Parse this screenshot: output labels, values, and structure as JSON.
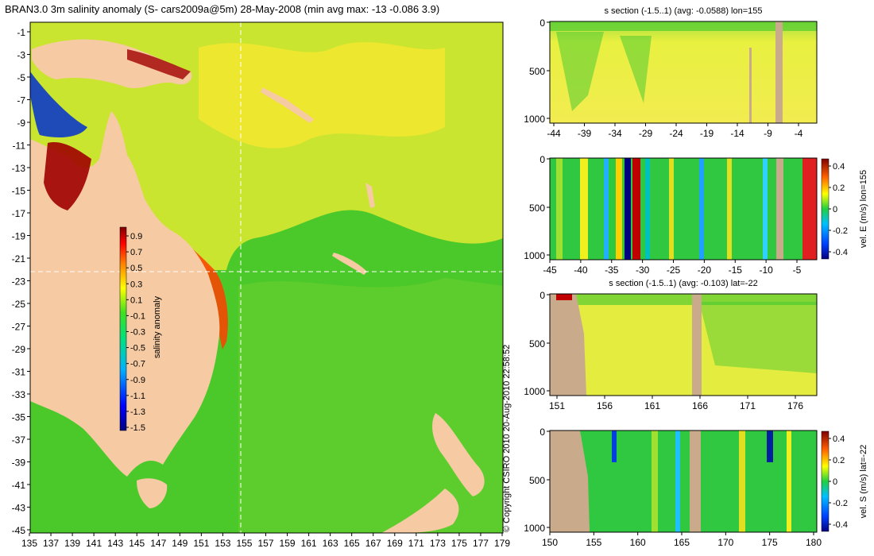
{
  "title": "BRAN3.0 3m salinity anomaly (S- cars2009a@5m) 28-May-2008 (min avg max: -13 -0.086 3.9)",
  "copyright": "© Copyright CSIRO 2010   20-Aug-2010 22:58:52",
  "colors": {
    "land": "#f6caa2",
    "section_land": "#c9ab8c",
    "background_ocean": "#4cc92a",
    "crosshair": "#ffffff"
  },
  "map": {
    "lon_ticks": [
      "135",
      "137",
      "139",
      "141",
      "143",
      "145",
      "147",
      "149",
      "151",
      "153",
      "155",
      "157",
      "159",
      "161",
      "163",
      "165",
      "167",
      "169",
      "171",
      "173",
      "175",
      "177",
      "179"
    ],
    "lat_ticks": [
      "-1",
      "-3",
      "-5",
      "-7",
      "-9",
      "-11",
      "-13",
      "-15",
      "-17",
      "-19",
      "-21",
      "-23",
      "-25",
      "-27",
      "-29",
      "-31",
      "-33",
      "-35",
      "-37",
      "-39",
      "-41",
      "-43",
      "-45"
    ],
    "crosshair_lon": 155,
    "crosshair_lat": -22,
    "colorbar": {
      "label": "salinity anomaly",
      "ticks": [
        "0.9",
        "0.7",
        "0.5",
        "0.3",
        "0.1",
        "-0.1",
        "-0.3",
        "-0.5",
        "-0.7",
        "-0.9",
        "-1.1",
        "-1.3",
        "-1.5"
      ],
      "range": [
        -1.5,
        0.9
      ]
    }
  },
  "sections": [
    {
      "title": "s section (-1.5..1) (avg: -0.0588) lon=155",
      "x_ticks": [
        "-44",
        "-39",
        "-34",
        "-29",
        "-24",
        "-19",
        "-14",
        "-9",
        "-4"
      ],
      "y_ticks": [
        "0",
        "500",
        "1000"
      ],
      "colorbar": null
    },
    {
      "title": "",
      "x_ticks": [
        "-45",
        "-40",
        "-35",
        "-30",
        "-25",
        "-20",
        "-15",
        "-10",
        "-5"
      ],
      "y_ticks": [
        "0",
        "500",
        "1000"
      ],
      "colorbar": {
        "label": "vel. E (m/s) lon=155",
        "ticks": [
          "0.4",
          "0.2",
          "0",
          "-0.2",
          "-0.4"
        ]
      }
    },
    {
      "title": "s section (-1.5..1) (avg: -0.103) lat=-22",
      "x_ticks": [
        "151",
        "156",
        "161",
        "166",
        "171",
        "176"
      ],
      "y_ticks": [
        "0",
        "500",
        "1000"
      ],
      "colorbar": null
    },
    {
      "title": "",
      "x_ticks": [
        "150",
        "155",
        "160",
        "165",
        "170",
        "175",
        "180"
      ],
      "y_ticks": [
        "0",
        "500",
        "1000"
      ],
      "colorbar": {
        "label": "vel. S (m/s) lat=-22",
        "ticks": [
          "0.4",
          "0.2",
          "0",
          "-0.2",
          "-0.4"
        ]
      }
    }
  ]
}
